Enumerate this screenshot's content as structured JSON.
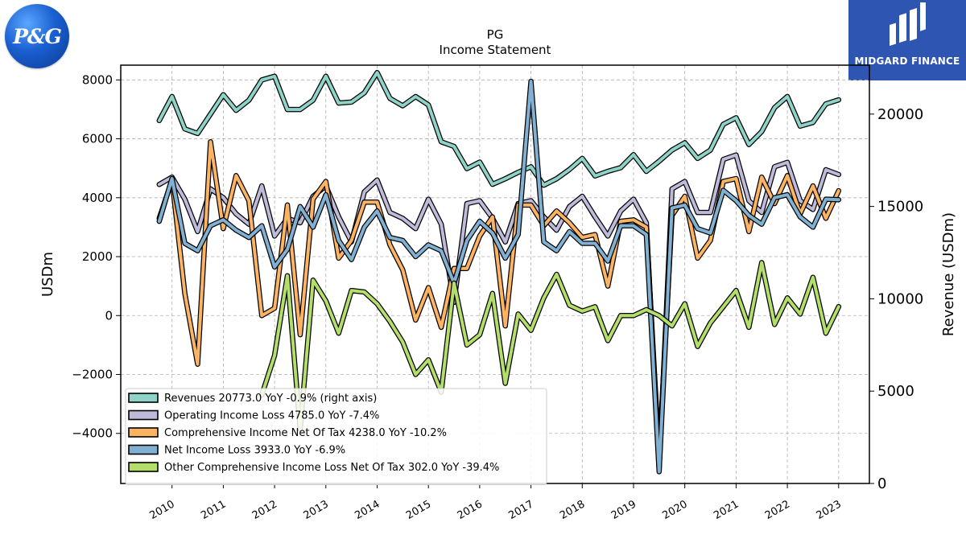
{
  "brand": {
    "company_logo_text": "P&G",
    "publisher_logo_text": "MIDGARD FINANCE"
  },
  "chart_data": {
    "type": "line",
    "title": "PG",
    "subtitle": "Income Statement",
    "ylabel": "USDm",
    "ylabel_right": "Revenue (USDm)",
    "ylim": [
      -5700,
      8500
    ],
    "ylim_right": [
      0,
      22650
    ],
    "yticks": [
      -4000,
      -2000,
      0,
      2000,
      4000,
      6000,
      8000
    ],
    "yticks_right": [
      0,
      5000,
      10000,
      15000,
      20000
    ],
    "xlim": [
      2009.0,
      2023.6
    ],
    "xticks": [
      2010,
      2011,
      2012,
      2013,
      2014,
      2015,
      2016,
      2017,
      2018,
      2019,
      2020,
      2021,
      2022,
      2023
    ],
    "grid": true,
    "legend_position": "lower-left",
    "x": [
      2009.75,
      2010.0,
      2010.25,
      2010.5,
      2010.75,
      2011.0,
      2011.25,
      2011.5,
      2011.75,
      2012.0,
      2012.25,
      2012.5,
      2012.75,
      2013.0,
      2013.25,
      2013.5,
      2013.75,
      2014.0,
      2014.25,
      2014.5,
      2014.75,
      2015.0,
      2015.25,
      2015.5,
      2015.75,
      2016.0,
      2016.25,
      2016.5,
      2016.75,
      2017.0,
      2017.25,
      2017.5,
      2017.75,
      2018.0,
      2018.25,
      2018.5,
      2018.75,
      2019.0,
      2019.25,
      2019.5,
      2019.75,
      2020.0,
      2020.25,
      2020.5,
      2020.75,
      2021.0,
      2021.25,
      2021.5,
      2021.75,
      2022.0,
      2022.25,
      2022.5,
      2022.75,
      2023.0
    ],
    "series": [
      {
        "name": "Revenues",
        "legend_label": "Revenues  20773.0 YoY -0.9% (right axis)",
        "axis": "right",
        "color": "#8dd3c7",
        "values": [
          19650,
          20950,
          19200,
          18950,
          20000,
          21050,
          20200,
          20750,
          21850,
          22050,
          20250,
          20250,
          20750,
          22050,
          20600,
          20650,
          21150,
          22250,
          20850,
          20450,
          20950,
          20500,
          18500,
          18250,
          17050,
          17400,
          16200,
          16500,
          16850,
          17150,
          16150,
          16500,
          17000,
          17600,
          16650,
          16900,
          17100,
          17800,
          16900,
          17450,
          18050,
          18450,
          17600,
          18050,
          19450,
          19800,
          18350,
          19050,
          20350,
          20950,
          19350,
          19550,
          20550,
          20773
        ]
      },
      {
        "name": "Operating Income Loss",
        "legend_label": "Operating Income Loss  4785.0 YoY -7.4%",
        "axis": "left",
        "color": "#bebada",
        "values": [
          4450,
          4700,
          3950,
          2850,
          4300,
          4000,
          3450,
          3100,
          4400,
          2700,
          3300,
          3150,
          4050,
          4400,
          3350,
          2500,
          4200,
          4600,
          3500,
          3300,
          2950,
          3950,
          3100,
          450,
          3800,
          3900,
          3300,
          2500,
          3800,
          3900,
          3350,
          2900,
          3700,
          4050,
          3350,
          2700,
          3550,
          3950,
          3150,
          -5200,
          4300,
          4550,
          3500,
          3500,
          5300,
          5450,
          3900,
          3500,
          5050,
          5200,
          3900,
          3600,
          4950,
          4785
        ]
      },
      {
        "name": "Comprehensive Income Net Of Tax",
        "legend_label": "Comprehensive Income Net Of Tax  4238.0 YoY -10.2%",
        "axis": "left",
        "color": "#fdb462",
        "values": [
          3300,
          4600,
          750,
          -1650,
          5900,
          2950,
          4750,
          3900,
          0,
          250,
          3750,
          -650,
          3950,
          4550,
          1950,
          2550,
          3850,
          3850,
          2400,
          1550,
          -150,
          950,
          -400,
          1600,
          1600,
          2700,
          3350,
          -350,
          3750,
          3750,
          3050,
          3550,
          3150,
          2650,
          2750,
          1000,
          3200,
          3250,
          3000,
          -4800,
          3400,
          4050,
          1950,
          2550,
          4550,
          4650,
          2850,
          4700,
          3800,
          4750,
          3450,
          4400,
          3300,
          4238
        ]
      },
      {
        "name": "Net Income Loss",
        "legend_label": "Net Income Loss  3933.0 YoY -6.9%",
        "axis": "left",
        "color": "#80b1d3",
        "values": [
          3200,
          4650,
          2450,
          2200,
          3050,
          3250,
          2900,
          2650,
          3050,
          1650,
          2250,
          3700,
          3000,
          4100,
          2550,
          1900,
          3000,
          3550,
          2650,
          2550,
          2000,
          2400,
          2200,
          1100,
          2550,
          3200,
          2800,
          1950,
          2750,
          7950,
          2500,
          2200,
          2850,
          2450,
          2450,
          1850,
          3050,
          3050,
          2750,
          -5300,
          3650,
          3750,
          2950,
          2800,
          4250,
          3900,
          3400,
          3100,
          4000,
          4100,
          3350,
          3000,
          3950,
          3933
        ]
      },
      {
        "name": "Other Comprehensive Income Loss Net Of Tax",
        "legend_label": "Other Comprehensive Income Loss Net Of Tax  302.0 YoY -39.4%",
        "axis": "left",
        "color": "#b3de69",
        "values": [
          null,
          null,
          null,
          null,
          null,
          null,
          null,
          null,
          -2700,
          -1350,
          1350,
          -3850,
          1200,
          500,
          -600,
          850,
          800,
          400,
          -200,
          -900,
          -2000,
          -1500,
          -2600,
          1100,
          -1000,
          -650,
          750,
          -2300,
          50,
          -500,
          600,
          1400,
          350,
          150,
          300,
          -850,
          0,
          0,
          200,
          0,
          -350,
          400,
          -1050,
          -250,
          300,
          850,
          -400,
          1800,
          -300,
          600,
          50,
          1300,
          -600,
          302
        ]
      }
    ]
  }
}
